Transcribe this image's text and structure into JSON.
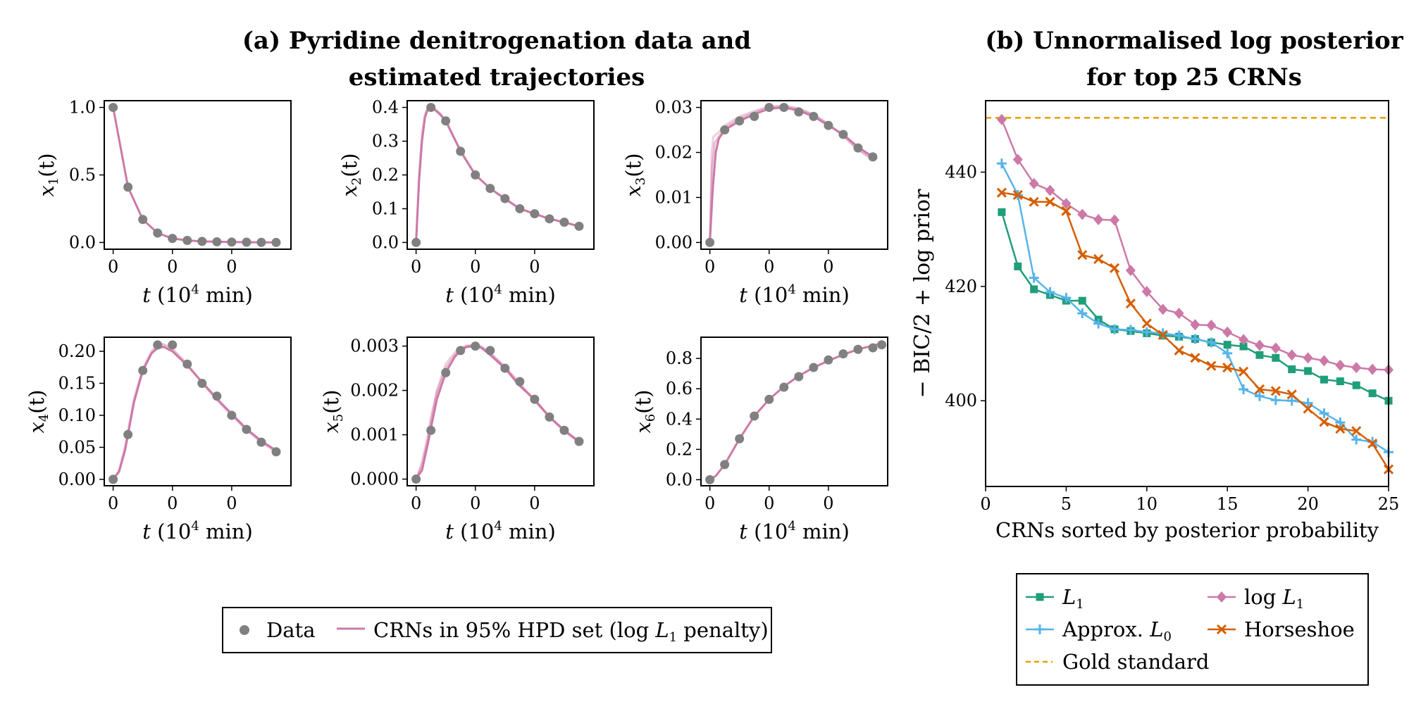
{
  "panel_a": {
    "title_line1": "(a) Pyridine denitrogenation data and",
    "title_line2": "estimated trajectories",
    "xlabel_t": "t",
    "xlabel_pre": " (10",
    "xlabel_sup": "4",
    "xlabel_post": " min)",
    "legend": {
      "data_label": "Data",
      "crn_label_pre": "CRNs in 95% HPD set (log ",
      "crn_label_L": "L",
      "crn_label_sub": "1",
      "crn_label_post": " penalty)"
    }
  },
  "panel_b": {
    "title_line1": "(b) Unnormalised log posterior",
    "title_line2": "for top 25 CRNs",
    "ylabel": "− BIC/2 + log prior",
    "xlabel": "CRNs sorted by posterior probability",
    "legend": {
      "l1_label_L": "L",
      "l1_label_sub": "1",
      "logl1_label_pre": "log ",
      "logl1_label_L": "L",
      "logl1_label_sub": "1",
      "approx_label_pre": "Approx. ",
      "approx_label_L": "L",
      "approx_label_sub": "0",
      "horseshoe_label": "Horseshoe",
      "gold_label": "Gold standard"
    }
  },
  "colors": {
    "data": "#808080",
    "crn": "#cc79a7",
    "L1": "#1f9e79",
    "logL1": "#cc79a7",
    "approxL0": "#56b4e9",
    "horseshoe": "#d55e00",
    "gold": "#e69f00"
  },
  "chart_data": [
    {
      "type": "line",
      "id": "x1",
      "ylabel_var": "x",
      "ylabel_sub": "1",
      "ylabel_arg": "(t)",
      "xlim": [
        -0.15,
        3.0
      ],
      "ylim": [
        -0.05,
        1.05
      ],
      "x_ticks": [
        0,
        1,
        2
      ],
      "x_tick_labels": [
        "0",
        "0",
        "0"
      ],
      "y_ticks": [
        0,
        0.5,
        1.0
      ],
      "y_tick_labels": [
        "0.0",
        "0.5",
        "1.0"
      ],
      "data_x": [
        0,
        0.25,
        0.5,
        0.75,
        1.0,
        1.25,
        1.5,
        1.75,
        2.0,
        2.25,
        2.5,
        2.75
      ],
      "data_y": [
        1.0,
        0.41,
        0.17,
        0.07,
        0.03,
        0.015,
        0.008,
        0.005,
        0.003,
        0.002,
        0.001,
        0.0
      ],
      "curves": [
        {
          "opacity": 1.0,
          "y": [
            1.0,
            0.41,
            0.17,
            0.07,
            0.03,
            0.015,
            0.008,
            0.005,
            0.003,
            0.002,
            0.001,
            0.0
          ]
        }
      ]
    },
    {
      "type": "line",
      "id": "x2",
      "ylabel_var": "x",
      "ylabel_sub": "2",
      "ylabel_arg": "(t)",
      "xlim": [
        -0.15,
        3.0
      ],
      "ylim": [
        -0.02,
        0.42
      ],
      "x_ticks": [
        0,
        1,
        2
      ],
      "x_tick_labels": [
        "0",
        "0",
        "0"
      ],
      "y_ticks": [
        0,
        0.1,
        0.2,
        0.3,
        0.4
      ],
      "y_tick_labels": [
        "0.0",
        "0.1",
        "0.2",
        "0.3",
        "0.4"
      ],
      "data_x": [
        0,
        0.25,
        0.5,
        0.75,
        1.0,
        1.25,
        1.5,
        1.75,
        2.0,
        2.25,
        2.5,
        2.75
      ],
      "data_y": [
        0.0,
        0.4,
        0.36,
        0.27,
        0.2,
        0.16,
        0.13,
        0.1,
        0.085,
        0.07,
        0.06,
        0.048
      ],
      "curves": [
        {
          "opacity": 1.0,
          "x": [
            0,
            0.05,
            0.1,
            0.15,
            0.2,
            0.25,
            0.3,
            0.4,
            0.5,
            0.75,
            1.0,
            1.25,
            1.5,
            1.75,
            2.0,
            2.25,
            2.5,
            2.75
          ],
          "y": [
            0.0,
            0.18,
            0.3,
            0.37,
            0.395,
            0.4,
            0.395,
            0.38,
            0.36,
            0.27,
            0.2,
            0.16,
            0.13,
            0.1,
            0.085,
            0.07,
            0.06,
            0.048
          ]
        },
        {
          "opacity": 0.5,
          "x": [
            0,
            0.05,
            0.1,
            0.15,
            0.2,
            0.25,
            0.3,
            0.4,
            0.5,
            0.75,
            1.0,
            1.25,
            1.5,
            1.75,
            2.0,
            2.25,
            2.5,
            2.75
          ],
          "y": [
            0.0,
            0.2,
            0.32,
            0.38,
            0.4,
            0.402,
            0.398,
            0.383,
            0.362,
            0.272,
            0.201,
            0.16,
            0.128,
            0.1,
            0.084,
            0.07,
            0.059,
            0.047
          ]
        }
      ]
    },
    {
      "type": "line",
      "id": "x3",
      "ylabel_var": "x",
      "ylabel_sub": "3",
      "ylabel_arg": "(t)",
      "xlim": [
        -0.15,
        3.0
      ],
      "ylim": [
        -0.0015,
        0.0315
      ],
      "x_ticks": [
        0,
        1,
        2
      ],
      "x_tick_labels": [
        "0",
        "0",
        "0"
      ],
      "y_ticks": [
        0,
        0.01,
        0.02,
        0.03
      ],
      "y_tick_labels": [
        "0.00",
        "0.01",
        "0.02",
        "0.03"
      ],
      "data_x": [
        0,
        0.25,
        0.5,
        0.75,
        1.0,
        1.25,
        1.5,
        1.75,
        2.0,
        2.25,
        2.5,
        2.75
      ],
      "data_y": [
        0.0,
        0.025,
        0.027,
        0.028,
        0.03,
        0.03,
        0.029,
        0.028,
        0.026,
        0.024,
        0.021,
        0.019
      ],
      "curves": [
        {
          "opacity": 1.0,
          "x": [
            0,
            0.05,
            0.1,
            0.15,
            0.25,
            0.5,
            0.75,
            1.0,
            1.25,
            1.5,
            1.75,
            2.0,
            2.25,
            2.5,
            2.75
          ],
          "y": [
            0.0,
            0.012,
            0.02,
            0.023,
            0.025,
            0.027,
            0.0285,
            0.0297,
            0.03,
            0.0293,
            0.028,
            0.026,
            0.024,
            0.0212,
            0.019
          ]
        },
        {
          "opacity": 0.5,
          "x": [
            0,
            0.04,
            0.08,
            0.15,
            0.25,
            0.5,
            0.75,
            1.0,
            1.25,
            1.5,
            1.75,
            2.0,
            2.25,
            2.5,
            2.75
          ],
          "y": [
            0.0,
            0.017,
            0.022,
            0.0235,
            0.0255,
            0.0275,
            0.0289,
            0.03,
            0.0302,
            0.0296,
            0.0283,
            0.0262,
            0.0238,
            0.0208,
            0.0186
          ]
        },
        {
          "opacity": 0.35,
          "x": [
            0,
            0.03,
            0.06,
            0.15,
            0.25,
            0.5,
            0.75,
            1.0,
            1.25,
            1.5,
            1.75,
            2.0,
            2.25,
            2.5,
            2.75
          ],
          "y": [
            0.0,
            0.02,
            0.0235,
            0.0245,
            0.026,
            0.028,
            0.0292,
            0.0302,
            0.0304,
            0.0298,
            0.0285,
            0.0264,
            0.0236,
            0.0205,
            0.0183
          ]
        }
      ]
    },
    {
      "type": "line",
      "id": "x4",
      "ylabel_var": "x",
      "ylabel_sub": "4",
      "ylabel_arg": "(t)",
      "xlim": [
        -0.15,
        3.0
      ],
      "ylim": [
        -0.01,
        0.222
      ],
      "x_ticks": [
        0,
        1,
        2
      ],
      "x_tick_labels": [
        "0",
        "0",
        "0"
      ],
      "y_ticks": [
        0,
        0.05,
        0.1,
        0.15,
        0.2
      ],
      "y_tick_labels": [
        "0.00",
        "0.05",
        "0.10",
        "0.15",
        "0.20"
      ],
      "data_x": [
        0,
        0.25,
        0.5,
        0.75,
        1.0,
        1.25,
        1.5,
        1.75,
        2.0,
        2.25,
        2.5,
        2.75
      ],
      "data_y": [
        0.0,
        0.07,
        0.17,
        0.21,
        0.21,
        0.18,
        0.15,
        0.13,
        0.1,
        0.078,
        0.058,
        0.043
      ],
      "curves": [
        {
          "opacity": 1.0,
          "x": [
            0,
            0.1,
            0.2,
            0.25,
            0.35,
            0.5,
            0.65,
            0.75,
            0.85,
            1.0,
            1.25,
            1.5,
            1.75,
            2.0,
            2.25,
            2.5,
            2.75
          ],
          "y": [
            0.0,
            0.012,
            0.045,
            0.07,
            0.12,
            0.17,
            0.197,
            0.205,
            0.207,
            0.2,
            0.178,
            0.152,
            0.126,
            0.102,
            0.079,
            0.06,
            0.045
          ]
        },
        {
          "opacity": 0.5,
          "x": [
            0,
            0.1,
            0.2,
            0.25,
            0.35,
            0.5,
            0.65,
            0.75,
            0.85,
            1.0,
            1.25,
            1.5,
            1.75,
            2.0,
            2.25,
            2.5,
            2.75
          ],
          "y": [
            0.0,
            0.014,
            0.05,
            0.075,
            0.125,
            0.173,
            0.2,
            0.209,
            0.211,
            0.204,
            0.18,
            0.151,
            0.124,
            0.1,
            0.077,
            0.058,
            0.043
          ]
        }
      ]
    },
    {
      "type": "line",
      "id": "x5",
      "ylabel_var": "x",
      "ylabel_sub": "5",
      "ylabel_arg": "(t)",
      "xlim": [
        -0.15,
        3.0
      ],
      "ylim": [
        -0.00015,
        0.0032
      ],
      "x_ticks": [
        0,
        1,
        2
      ],
      "x_tick_labels": [
        "0",
        "0",
        "0"
      ],
      "y_ticks": [
        0,
        0.001,
        0.002,
        0.003
      ],
      "y_tick_labels": [
        "0.000",
        "0.001",
        "0.002",
        "0.003"
      ],
      "data_x": [
        0,
        0.25,
        0.5,
        0.75,
        1.0,
        1.25,
        1.5,
        1.75,
        2.0,
        2.25,
        2.5,
        2.75
      ],
      "data_y": [
        0.0,
        0.0011,
        0.0024,
        0.0029,
        0.003,
        0.0029,
        0.0025,
        0.0022,
        0.0018,
        0.0014,
        0.0011,
        0.00085
      ],
      "curves": [
        {
          "opacity": 1.0,
          "x": [
            0,
            0.1,
            0.2,
            0.25,
            0.35,
            0.5,
            0.65,
            0.75,
            0.85,
            1.0,
            1.1,
            1.25,
            1.5,
            1.75,
            2.0,
            2.25,
            2.5,
            2.75
          ],
          "y": [
            0.0,
            0.0002,
            0.0008,
            0.00115,
            0.0018,
            0.0024,
            0.00275,
            0.0029,
            0.00298,
            0.003,
            0.00296,
            0.0028,
            0.0025,
            0.0021,
            0.0018,
            0.0014,
            0.0011,
            0.00085
          ]
        },
        {
          "opacity": 0.5,
          "x": [
            0,
            0.1,
            0.2,
            0.25,
            0.35,
            0.5,
            0.65,
            0.75,
            0.85,
            1.0,
            1.1,
            1.25,
            1.5,
            1.75,
            2.0,
            2.25,
            2.5,
            2.75
          ],
          "y": [
            0.0,
            0.0003,
            0.0009,
            0.0013,
            0.00195,
            0.0025,
            0.0028,
            0.00292,
            0.003,
            0.00302,
            0.00298,
            0.00283,
            0.00252,
            0.00214,
            0.00176,
            0.0014,
            0.00108,
            0.00083
          ]
        },
        {
          "opacity": 0.35,
          "x": [
            0,
            0.1,
            0.2,
            0.25,
            0.35,
            0.5,
            0.65,
            0.75,
            0.85,
            1.0,
            1.1,
            1.25,
            1.5,
            1.75,
            2.0,
            2.25,
            2.5,
            2.75
          ],
          "y": [
            0.0,
            0.0004,
            0.001,
            0.0014,
            0.002,
            0.0026,
            0.00285,
            0.00295,
            0.00301,
            0.00303,
            0.00299,
            0.00285,
            0.00254,
            0.00216,
            0.00178,
            0.00142,
            0.0011,
            0.00085
          ]
        }
      ]
    },
    {
      "type": "line",
      "id": "x6",
      "ylabel_var": "x",
      "ylabel_sub": "6",
      "ylabel_arg": "(t)",
      "xlim": [
        -0.15,
        3.0
      ],
      "ylim": [
        -0.04,
        0.94
      ],
      "x_ticks": [
        0,
        1,
        2
      ],
      "x_tick_labels": [
        "0",
        "0",
        "0"
      ],
      "y_ticks": [
        0,
        0.2,
        0.4,
        0.6,
        0.8
      ],
      "y_tick_labels": [
        "0.0",
        "0.2",
        "0.4",
        "0.6",
        "0.8"
      ],
      "data_x": [
        0,
        0.25,
        0.5,
        0.75,
        1.0,
        1.25,
        1.5,
        1.75,
        2.0,
        2.25,
        2.5,
        2.75,
        2.9
      ],
      "data_y": [
        0.0,
        0.1,
        0.27,
        0.42,
        0.53,
        0.61,
        0.68,
        0.74,
        0.79,
        0.83,
        0.86,
        0.87,
        0.89
      ],
      "curves": [
        {
          "opacity": 1.0,
          "x": [
            0,
            0.1,
            0.25,
            0.5,
            0.75,
            1.0,
            1.25,
            1.5,
            1.75,
            2.0,
            2.25,
            2.5,
            2.75,
            2.9
          ],
          "y": [
            0.0,
            0.025,
            0.1,
            0.27,
            0.42,
            0.53,
            0.615,
            0.685,
            0.74,
            0.785,
            0.825,
            0.86,
            0.885,
            0.9
          ]
        }
      ]
    },
    {
      "type": "line",
      "id": "posterior",
      "xlim": [
        0,
        25
      ],
      "ylim": [
        385,
        452.5
      ],
      "x_ticks": [
        0,
        5,
        10,
        15,
        20,
        25
      ],
      "x_tick_labels": [
        "0",
        "5",
        "10",
        "15",
        "20",
        "25"
      ],
      "y_ticks": [
        400,
        420,
        440
      ],
      "y_tick_labels": [
        "400",
        "420",
        "440"
      ],
      "x": [
        1,
        2,
        3,
        4,
        5,
        6,
        7,
        8,
        9,
        10,
        11,
        12,
        13,
        14,
        15,
        16,
        17,
        18,
        19,
        20,
        21,
        22,
        23,
        24,
        25
      ],
      "gold_standard": 449.5,
      "series": [
        {
          "name": "L1",
          "key": "L1",
          "marker": "square",
          "values": [
            433,
            423.5,
            419.5,
            418.5,
            417.5,
            417.5,
            414.2,
            412.5,
            412.2,
            411.8,
            411.4,
            411.2,
            410.8,
            410.2,
            409.8,
            409.5,
            408,
            407.5,
            405.5,
            405.2,
            403.7,
            403.4,
            402.7,
            401.3,
            400
          ]
        },
        {
          "name": "log L1",
          "key": "logL1",
          "marker": "diamond",
          "values": [
            449.2,
            442.2,
            438,
            436.8,
            434.5,
            432.6,
            431.7,
            431.6,
            422.8,
            419.1,
            416,
            415.3,
            413.3,
            413.2,
            412,
            410.7,
            409.7,
            409.2,
            408,
            407.5,
            407,
            406.2,
            405.8,
            405.5,
            405.4
          ]
        },
        {
          "name": "Approx. L0",
          "key": "approxL0",
          "marker": "plus",
          "values": [
            441.5,
            436,
            421.5,
            419,
            418,
            415.3,
            413.5,
            412.5,
            412.4,
            412,
            411.8,
            411.4,
            410.8,
            410.2,
            408.3,
            402,
            400.8,
            400.1,
            400,
            399.6,
            397.8,
            396.2,
            393.2,
            392.8,
            391
          ]
        },
        {
          "name": "Horseshoe",
          "key": "horseshoe",
          "marker": "x",
          "values": [
            436.4,
            436,
            434.8,
            434.8,
            433.2,
            425.5,
            424.8,
            423.2,
            417,
            413.5,
            411.5,
            408.8,
            407.5,
            406.1,
            405.8,
            405.1,
            402,
            401.7,
            401.1,
            398.6,
            396.3,
            395.1,
            394.7,
            392.5,
            388
          ]
        }
      ]
    }
  ]
}
